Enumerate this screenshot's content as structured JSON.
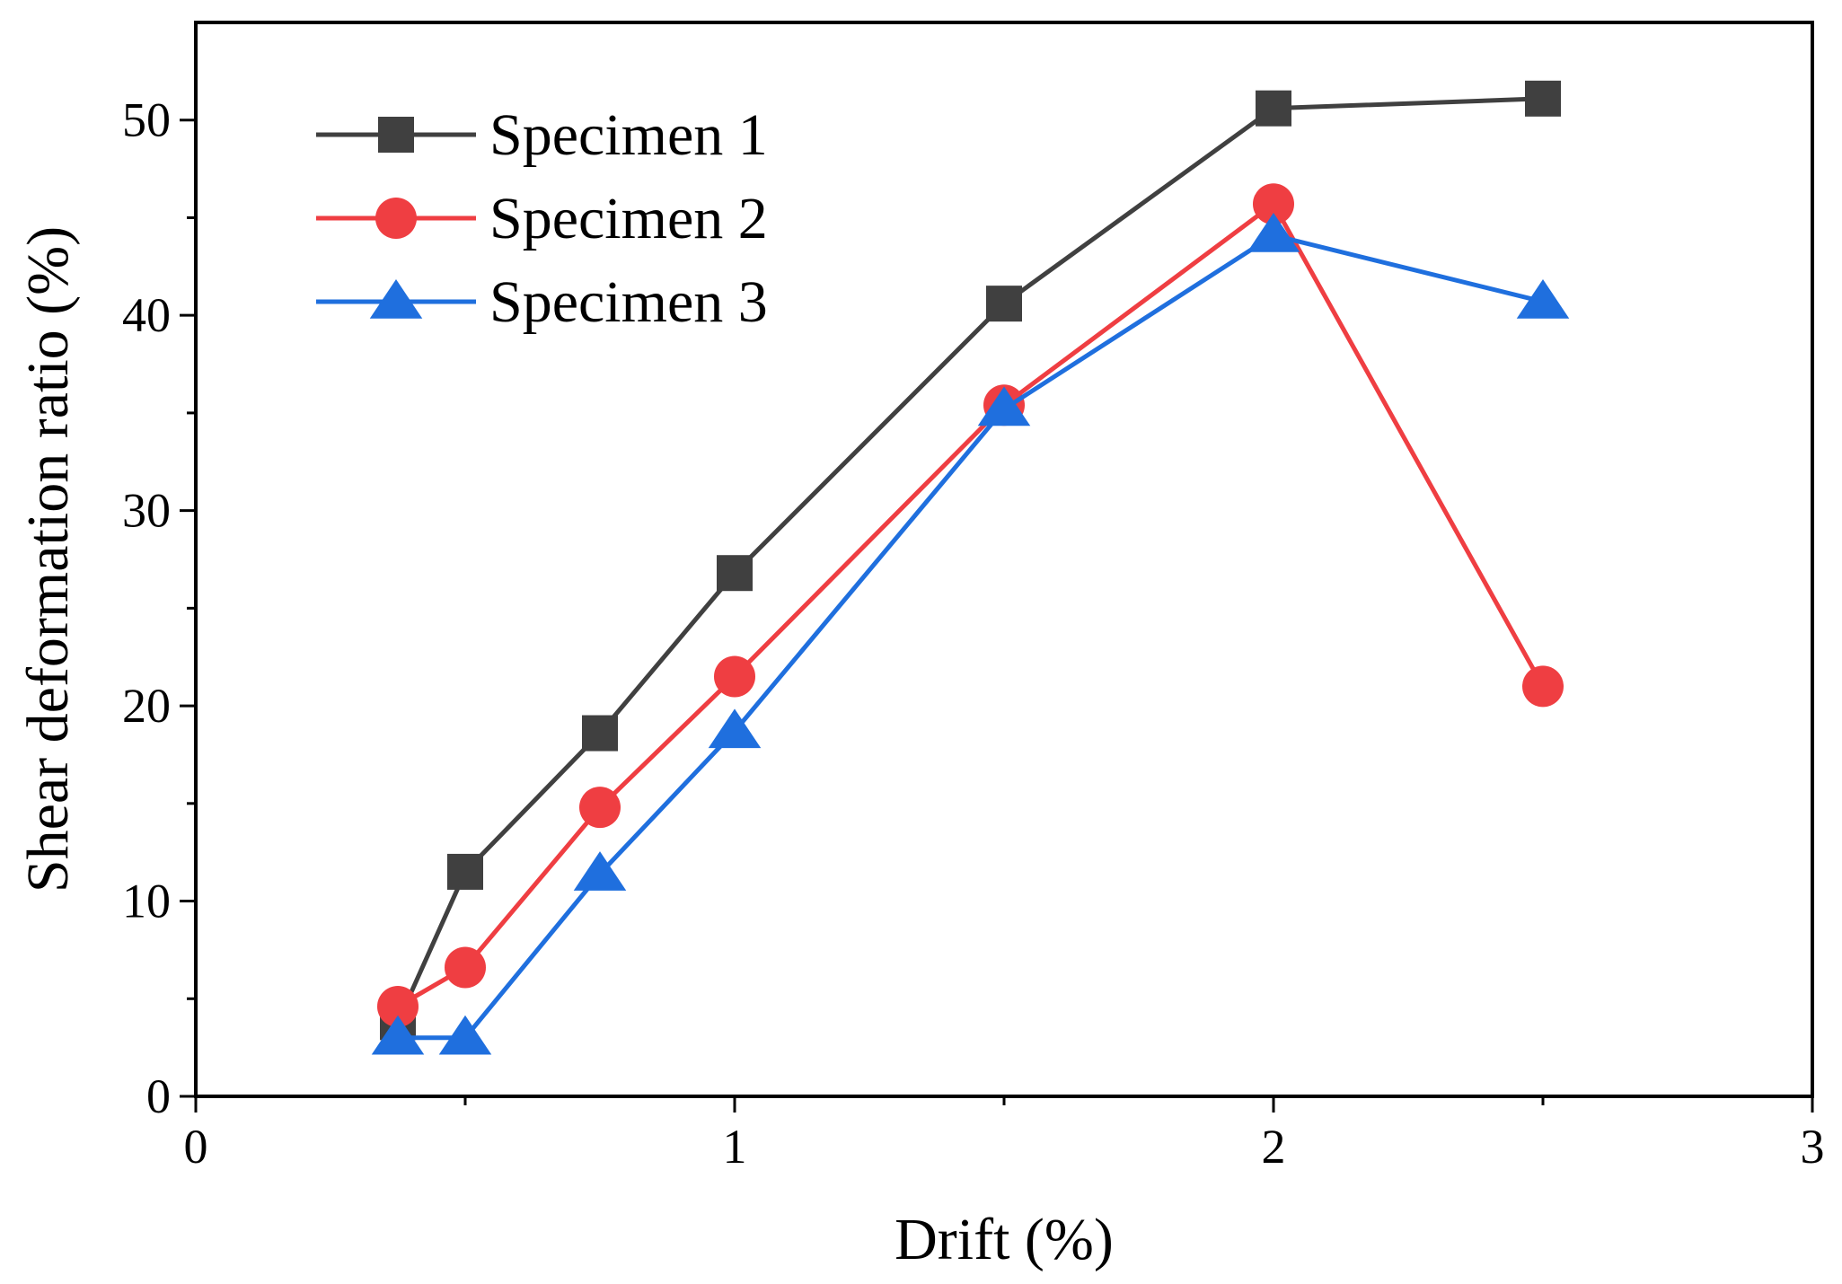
{
  "chart_data": {
    "type": "line",
    "title": "",
    "xlabel": "Drift (%)",
    "ylabel": "Shear deformation ratio (%)",
    "xlim": [
      0,
      3
    ],
    "ylim": [
      0,
      55
    ],
    "xticks": [
      0,
      1,
      2,
      3
    ],
    "xtick_labels": [
      "0",
      "1",
      "2",
      "3"
    ],
    "x_minor_ticks": [
      0.5,
      1.5,
      2.5
    ],
    "yticks": [
      0,
      10,
      20,
      30,
      40,
      50
    ],
    "ytick_labels": [
      "0",
      "10",
      "20",
      "30",
      "40",
      "50"
    ],
    "y_minor_ticks": [
      5,
      15,
      25,
      35,
      45
    ],
    "grid": false,
    "legend_position": "top-left",
    "series": [
      {
        "name": "Specimen 1",
        "color": "#404040",
        "marker": "square",
        "x": [
          0.375,
          0.5,
          0.75,
          1.0,
          1.5,
          2.0,
          2.5
        ],
        "y": [
          3.8,
          11.5,
          18.6,
          26.8,
          40.6,
          50.6,
          51.1
        ]
      },
      {
        "name": "Specimen 2",
        "color": "#ef3e42",
        "marker": "circle",
        "x": [
          0.375,
          0.5,
          0.75,
          1.0,
          1.5,
          2.0,
          2.5
        ],
        "y": [
          4.6,
          6.6,
          14.8,
          21.5,
          35.4,
          45.7,
          21.0
        ]
      },
      {
        "name": "Specimen 3",
        "color": "#1f6fde",
        "marker": "triangle",
        "x": [
          0.375,
          0.5,
          0.75,
          1.0,
          1.5,
          2.0,
          2.5
        ],
        "y": [
          3.0,
          3.0,
          11.4,
          18.7,
          35.2,
          44.1,
          40.7
        ]
      }
    ]
  }
}
